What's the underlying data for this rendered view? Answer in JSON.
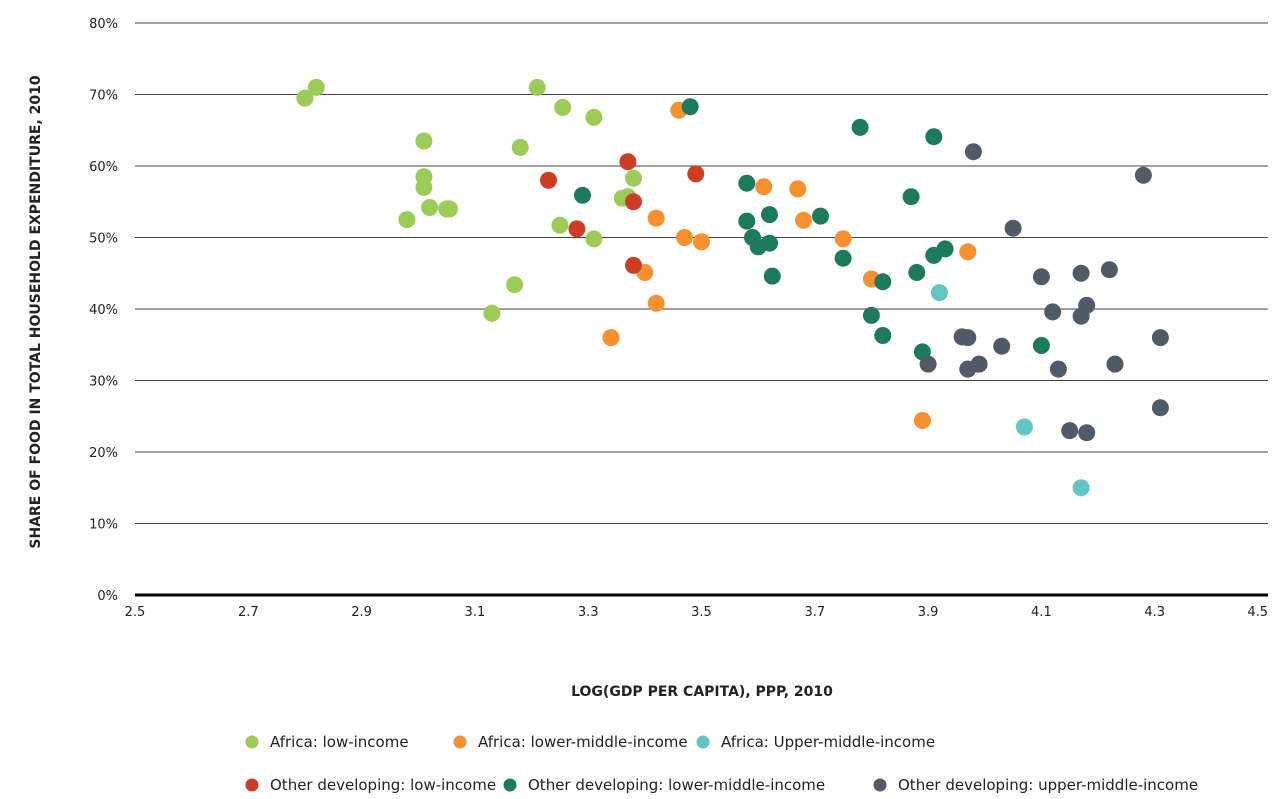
{
  "chart_data": {
    "type": "scatter",
    "title": "",
    "xlabel": "LOG(GDP PER CAPITA), PPP, 2010",
    "ylabel": "SHARE OF FOOD IN TOTAL HOUSEHOLD EXPENDITURE, 2010",
    "xlim": [
      2.5,
      4.5
    ],
    "ylim": [
      0,
      80
    ],
    "x_ticks": [
      "2.5",
      "2.7",
      "2.9",
      "3.1",
      "3.3",
      "3.5",
      "3.7",
      "3.9",
      "4.1",
      "4.3",
      "4.5"
    ],
    "y_ticks": [
      "0%",
      "10%",
      "20%",
      "30%",
      "40%",
      "50%",
      "60%",
      "70%",
      "80%"
    ],
    "grid": "horizontal",
    "legend_position": "bottom",
    "series": [
      {
        "name": "Africa: low-income",
        "color": "#9ccc57",
        "points": [
          [
            2.8,
            69.5
          ],
          [
            2.82,
            71
          ],
          [
            2.98,
            52.5
          ],
          [
            3.01,
            63.5
          ],
          [
            3.01,
            58.5
          ],
          [
            3.01,
            57
          ],
          [
            3.02,
            54.2
          ],
          [
            3.05,
            54
          ],
          [
            3.055,
            54
          ],
          [
            3.13,
            39.4
          ],
          [
            3.17,
            43.4
          ],
          [
            3.18,
            62.6
          ],
          [
            3.21,
            71
          ],
          [
            3.25,
            51.7
          ],
          [
            3.255,
            68.2
          ],
          [
            3.31,
            49.8
          ],
          [
            3.31,
            66.8
          ],
          [
            3.36,
            55.5
          ],
          [
            3.37,
            55.7
          ],
          [
            3.38,
            58.3
          ]
        ]
      },
      {
        "name": "Africa: lower-middle-income",
        "color": "#f7902f",
        "points": [
          [
            3.34,
            36
          ],
          [
            3.4,
            45.1
          ],
          [
            3.42,
            52.7
          ],
          [
            3.42,
            40.8
          ],
          [
            3.46,
            67.8
          ],
          [
            3.47,
            50
          ],
          [
            3.5,
            49.4
          ],
          [
            3.61,
            57.1
          ],
          [
            3.67,
            56.8
          ],
          [
            3.68,
            52.4
          ],
          [
            3.75,
            49.8
          ],
          [
            3.8,
            44.2
          ],
          [
            3.89,
            24.4
          ],
          [
            3.97,
            48
          ]
        ]
      },
      {
        "name": "Africa: Upper-middle-income",
        "color": "#64c6c4",
        "points": [
          [
            3.92,
            42.3
          ],
          [
            4.07,
            23.5
          ],
          [
            4.17,
            15
          ]
        ]
      },
      {
        "name": "Other developing: low-income",
        "color": "#cd3d24",
        "points": [
          [
            3.23,
            58
          ],
          [
            3.28,
            51.2
          ],
          [
            3.37,
            60.6
          ],
          [
            3.38,
            55
          ],
          [
            3.38,
            46.1
          ],
          [
            3.49,
            58.9
          ]
        ]
      },
      {
        "name": "Other developing: lower-middle-income",
        "color": "#1d7a5d",
        "points": [
          [
            3.29,
            55.9
          ],
          [
            3.48,
            68.3
          ],
          [
            3.58,
            57.6
          ],
          [
            3.58,
            52.3
          ],
          [
            3.59,
            50
          ],
          [
            3.6,
            48.7
          ],
          [
            3.62,
            49.2
          ],
          [
            3.62,
            53.2
          ],
          [
            3.625,
            44.6
          ],
          [
            3.71,
            53
          ],
          [
            3.75,
            47.1
          ],
          [
            3.78,
            65.4
          ],
          [
            3.8,
            39.1
          ],
          [
            3.82,
            43.8
          ],
          [
            3.82,
            36.3
          ],
          [
            3.87,
            55.7
          ],
          [
            3.88,
            45.1
          ],
          [
            3.89,
            34
          ],
          [
            3.91,
            64.1
          ],
          [
            3.91,
            47.5
          ],
          [
            3.93,
            48.4
          ],
          [
            4.1,
            34.9
          ]
        ]
      },
      {
        "name": "Other developing: upper-middle-income",
        "color": "#4f5b66",
        "points": [
          [
            3.9,
            32.3
          ],
          [
            3.96,
            36.1
          ],
          [
            3.97,
            36
          ],
          [
            3.97,
            31.6
          ],
          [
            3.98,
            62
          ],
          [
            3.99,
            32.3
          ],
          [
            4.03,
            34.8
          ],
          [
            4.05,
            51.3
          ],
          [
            4.1,
            44.5
          ],
          [
            4.12,
            39.6
          ],
          [
            4.13,
            31.6
          ],
          [
            4.15,
            23
          ],
          [
            4.17,
            45
          ],
          [
            4.17,
            39
          ],
          [
            4.18,
            40.5
          ],
          [
            4.18,
            22.7
          ],
          [
            4.22,
            45.5
          ],
          [
            4.23,
            32.3
          ],
          [
            4.28,
            58.7
          ],
          [
            4.31,
            36
          ],
          [
            4.31,
            26.2
          ]
        ]
      }
    ]
  }
}
